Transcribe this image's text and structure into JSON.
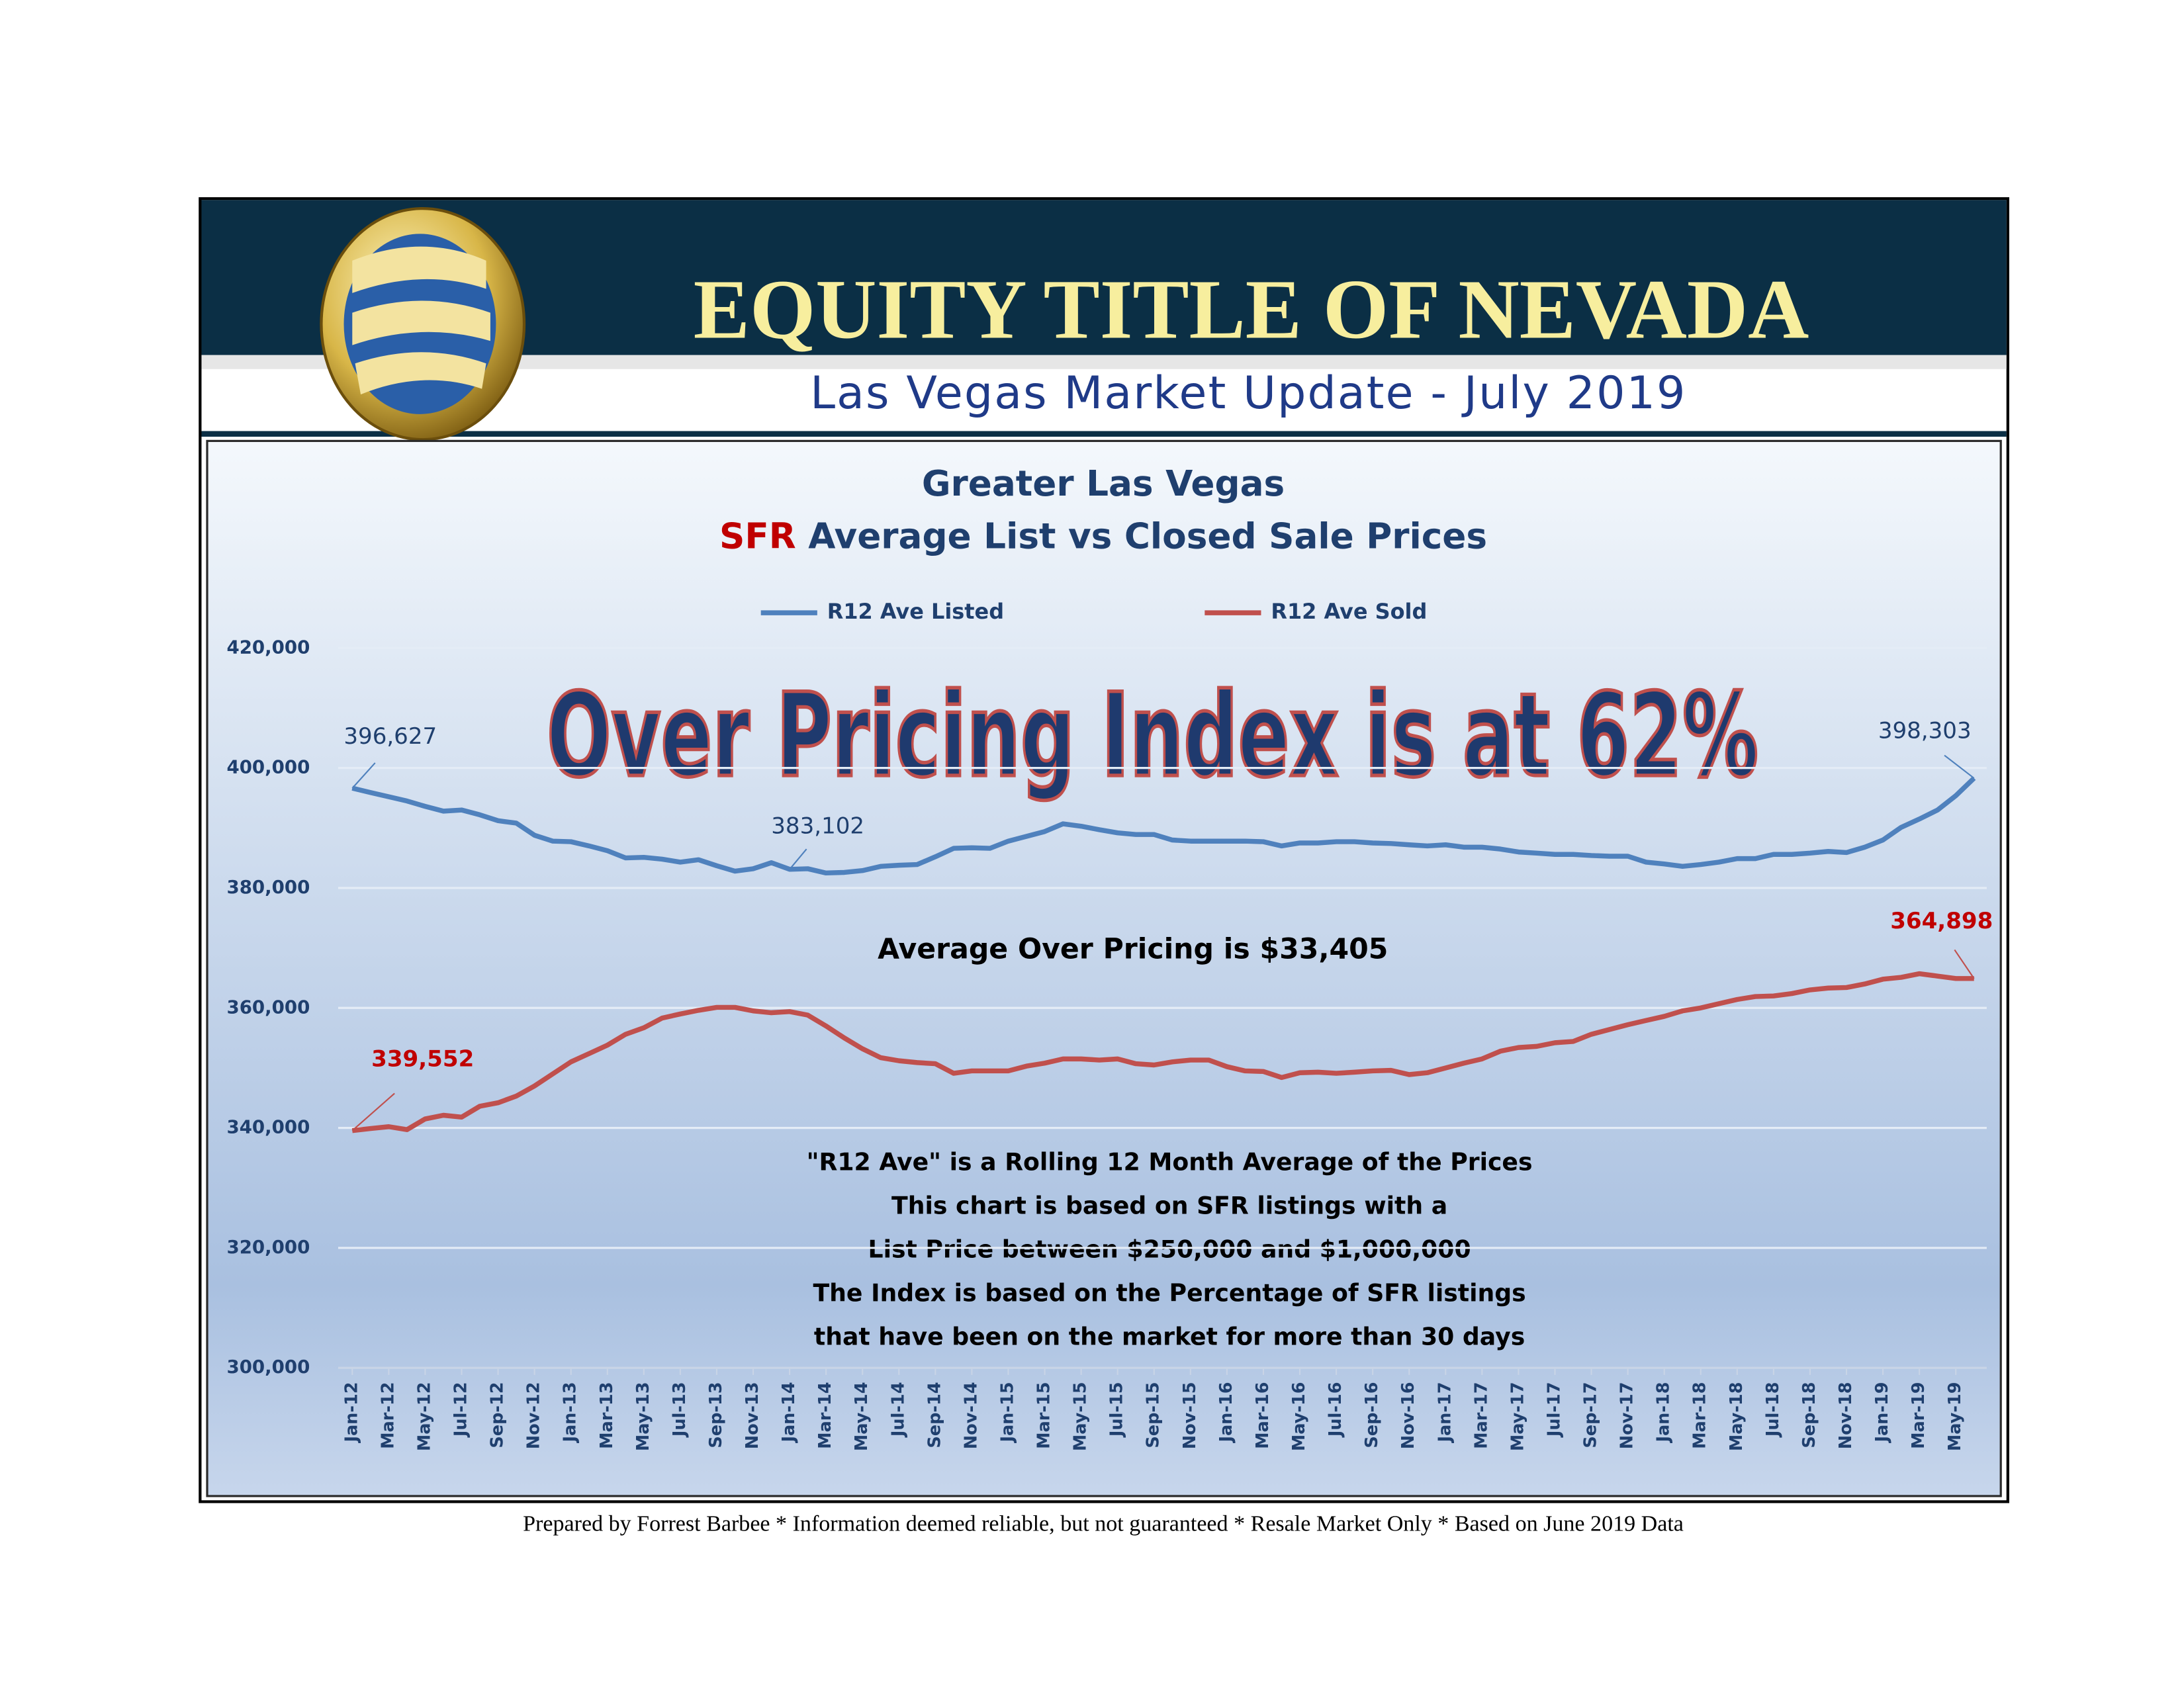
{
  "header": {
    "title": "EQUITY TITLE OF NEVADA",
    "subtitle": "Las Vegas Market Update - July 2019"
  },
  "chart_data": {
    "type": "line",
    "title": "Greater Las Vegas",
    "subtitle_prefix": "SFR",
    "subtitle": "Average List vs Closed Sale Prices",
    "annotations": [
      "Over Pricing Index is at 62%",
      "Average Over Pricing is $33,405"
    ],
    "notes": [
      "\"R12 Ave\" is a Rolling 12 Month Average of the Prices",
      "This chart is based on SFR listings with a",
      "List Price between $250,000 and $1,000,000",
      "The Index is based on the Percentage of SFR listings",
      "that have been on the market for more than 30 days"
    ],
    "categories": [
      "Jan-12",
      null,
      "Mar-12",
      null,
      "May-12",
      null,
      "Jul-12",
      null,
      "Sep-12",
      null,
      "Nov-12",
      null,
      "Jan-13",
      null,
      "Mar-13",
      null,
      "May-13",
      null,
      "Jul-13",
      null,
      "Sep-13",
      null,
      "Nov-13",
      null,
      "Jan-14",
      null,
      "Mar-14",
      null,
      "May-14",
      null,
      "Jul-14",
      null,
      "Sep-14",
      null,
      "Nov-14",
      null,
      "Jan-15",
      null,
      "Mar-15",
      null,
      "May-15",
      null,
      "Jul-15",
      null,
      "Sep-15",
      null,
      "Nov-15",
      null,
      "Jan-16",
      null,
      "Mar-16",
      null,
      "May-16",
      null,
      "Jul-16",
      null,
      "Sep-16",
      null,
      "Nov-16",
      null,
      "Jan-17",
      null,
      "Mar-17",
      null,
      "May-17",
      null,
      "Jul-17",
      null,
      "Sep-17",
      null,
      "Nov-17",
      null,
      "Jan-18",
      null,
      "Mar-18",
      null,
      "May-18",
      null,
      "Jul-18",
      null,
      "Sep-18",
      null,
      "Nov-18",
      null,
      "Jan-19",
      null,
      "Mar-19",
      null,
      "May-19",
      null
    ],
    "series": [
      {
        "name": "R12 Ave Listed",
        "color": "#4f81bd",
        "values": [
          396627,
          395900,
          395200,
          394500,
          393600,
          392800,
          393000,
          392200,
          391200,
          390800,
          388800,
          387800,
          387700,
          387000,
          386200,
          385000,
          385100,
          384800,
          384300,
          384700,
          383700,
          382800,
          383200,
          384200,
          383102,
          383200,
          382500,
          382600,
          382900,
          383600,
          383800,
          383900,
          385200,
          386600,
          386700,
          386600,
          387800,
          388600,
          389400,
          390700,
          390300,
          389700,
          389200,
          388900,
          388900,
          388000,
          387800,
          387800,
          387800,
          387800,
          387700,
          387000,
          387500,
          387500,
          387700,
          387700,
          387500,
          387400,
          387200,
          387000,
          387200,
          386800,
          386800,
          386500,
          386000,
          385800,
          385600,
          385600,
          385400,
          385300,
          385300,
          384300,
          384000,
          383600,
          383900,
          384300,
          384900,
          384900,
          385600,
          385600,
          385800,
          386100,
          385900,
          386800,
          388000,
          390100,
          391500,
          393000,
          395400,
          398303
        ],
        "value_labels": [
          "396,627",
          null,
          null,
          null,
          null,
          null,
          null,
          null,
          null,
          null,
          null,
          null,
          null,
          null,
          null,
          null,
          null,
          null,
          null,
          null,
          null,
          null,
          null,
          null,
          "383,102",
          null,
          null,
          null,
          null,
          null,
          null,
          null,
          null,
          null,
          null,
          null,
          null,
          null,
          null,
          null,
          null,
          null,
          null,
          null,
          null,
          null,
          null,
          null,
          null,
          null,
          null,
          null,
          null,
          null,
          null,
          null,
          null,
          null,
          null,
          null,
          null,
          null,
          null,
          null,
          null,
          null,
          null,
          null,
          null,
          null,
          null,
          null,
          null,
          null,
          null,
          null,
          null,
          null,
          null,
          null,
          null,
          null,
          null,
          null,
          null,
          null,
          null,
          null,
          null,
          "398,303"
        ]
      },
      {
        "name": "R12 Ave Sold",
        "color": "#c0504d",
        "values": [
          339552,
          339900,
          340200,
          339700,
          341500,
          342100,
          341800,
          343600,
          344200,
          345300,
          347000,
          349000,
          351000,
          352400,
          353800,
          355600,
          356700,
          358300,
          359000,
          359600,
          360100,
          360100,
          359500,
          359200,
          359400,
          358800,
          357000,
          355000,
          353200,
          351700,
          351200,
          350900,
          350700,
          349100,
          349500,
          349500,
          349500,
          350300,
          350800,
          351500,
          351500,
          351300,
          351500,
          350700,
          350500,
          351000,
          351300,
          351300,
          350200,
          349500,
          349400,
          348400,
          349200,
          349300,
          349100,
          349300,
          349500,
          349600,
          348900,
          349200,
          350000,
          350800,
          351500,
          352800,
          353400,
          353600,
          354200,
          354400,
          355600,
          356400,
          357200,
          357900,
          358600,
          359500,
          360000,
          360700,
          361400,
          361900,
          362000,
          362400,
          363000,
          363300,
          363400,
          364000,
          364800,
          365100,
          365700,
          365300,
          364900,
          364898
        ],
        "value_labels": [
          "339,552",
          null,
          null,
          null,
          null,
          null,
          null,
          null,
          null,
          null,
          null,
          null,
          null,
          null,
          null,
          null,
          null,
          null,
          null,
          null,
          null,
          null,
          null,
          null,
          null,
          null,
          null,
          null,
          null,
          null,
          null,
          null,
          null,
          null,
          null,
          null,
          null,
          null,
          null,
          null,
          null,
          null,
          null,
          null,
          null,
          null,
          null,
          null,
          null,
          null,
          null,
          null,
          null,
          null,
          null,
          null,
          null,
          null,
          null,
          null,
          null,
          null,
          null,
          null,
          null,
          null,
          null,
          null,
          null,
          null,
          null,
          null,
          null,
          null,
          null,
          null,
          null,
          null,
          null,
          null,
          null,
          null,
          null,
          null,
          null,
          null,
          null,
          null,
          null,
          "364,898"
        ]
      }
    ],
    "ylim": [
      300000,
      420000
    ],
    "yticks": [
      {
        "value": 300000,
        "label": "300,000"
      },
      {
        "value": 320000,
        "label": "320,000"
      },
      {
        "value": 340000,
        "label": "340,000"
      },
      {
        "value": 360000,
        "label": "360,000"
      },
      {
        "value": 380000,
        "label": "380,000"
      },
      {
        "value": 400000,
        "label": "400,000"
      },
      {
        "value": 420000,
        "label": "420,000"
      }
    ],
    "grid": true,
    "legend": "top"
  },
  "footer": "Prepared by Forrest Barbee * Information deemed reliable, but not guaranteed * Resale Market Only * Based on June 2019 Data"
}
